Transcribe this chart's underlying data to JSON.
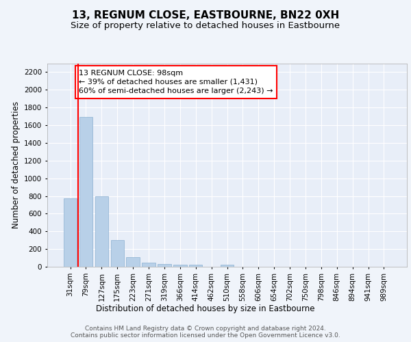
{
  "title": "13, REGNUM CLOSE, EASTBOURNE, BN22 0XH",
  "subtitle": "Size of property relative to detached houses in Eastbourne",
  "xlabel": "Distribution of detached houses by size in Eastbourne",
  "ylabel": "Number of detached properties",
  "categories": [
    "31sqm",
    "79sqm",
    "127sqm",
    "175sqm",
    "223sqm",
    "271sqm",
    "319sqm",
    "366sqm",
    "414sqm",
    "462sqm",
    "510sqm",
    "558sqm",
    "606sqm",
    "654sqm",
    "702sqm",
    "750sqm",
    "798sqm",
    "846sqm",
    "894sqm",
    "941sqm",
    "989sqm"
  ],
  "values": [
    770,
    1690,
    795,
    300,
    110,
    45,
    32,
    25,
    22,
    0,
    22,
    0,
    0,
    0,
    0,
    0,
    0,
    0,
    0,
    0,
    0
  ],
  "bar_color": "#b8d0e8",
  "bar_edge_color": "#8ab0d0",
  "annotation_text": "13 REGNUM CLOSE: 98sqm\n← 39% of detached houses are smaller (1,431)\n60% of semi-detached houses are larger (2,243) →",
  "ylim": [
    0,
    2300
  ],
  "yticks": [
    0,
    200,
    400,
    600,
    800,
    1000,
    1200,
    1400,
    1600,
    1800,
    2000,
    2200
  ],
  "footer_line1": "Contains HM Land Registry data © Crown copyright and database right 2024.",
  "footer_line2": "Contains public sector information licensed under the Open Government Licence v3.0.",
  "bg_color": "#f0f4fa",
  "plot_bg_color": "#e8eef8",
  "grid_color": "#ffffff",
  "title_fontsize": 11,
  "subtitle_fontsize": 9.5,
  "axis_label_fontsize": 8.5,
  "tick_fontsize": 7.5,
  "annotation_fontsize": 8,
  "footer_fontsize": 6.5
}
